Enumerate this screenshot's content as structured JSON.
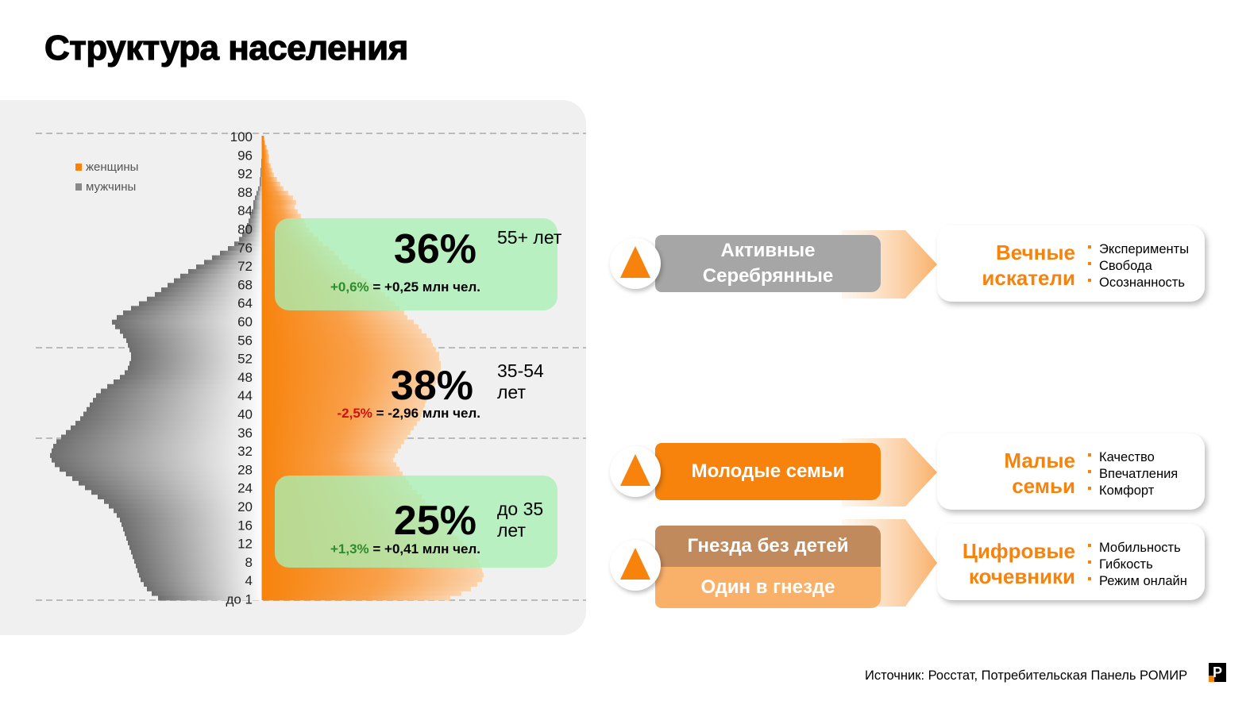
{
  "title": "Структура населения",
  "chart_data": {
    "type": "population-pyramid",
    "legend": [
      "женщины",
      "мужчины"
    ],
    "y_tick_labels": [
      "100",
      "96",
      "92",
      "88",
      "84",
      "80",
      "76",
      "72",
      "68",
      "64",
      "60",
      "56",
      "52",
      "48",
      "44",
      "40",
      "36",
      "32",
      "28",
      "24",
      "20",
      "16",
      "12",
      "8",
      "4",
      "до 1"
    ],
    "series": [
      {
        "name": "женщины",
        "values": [
          1,
          3,
          5,
          7,
          8,
          8,
          10,
          12,
          14,
          18,
          22,
          26,
          32,
          38,
          42,
          40,
          44,
          48,
          52,
          54,
          58,
          64,
          70,
          76,
          84,
          90,
          96,
          100,
          108,
          116,
          124,
          132,
          140,
          148,
          154,
          160,
          166,
          172,
          178,
          182,
          190,
          196,
          200,
          206,
          212,
          214,
          218,
          222,
          222,
          224,
          224,
          222,
          220,
          218,
          216,
          214,
          210,
          206,
          204,
          202,
          200,
          198,
          194,
          190,
          186,
          182,
          178,
          174,
          170,
          166,
          164,
          168,
          172,
          176,
          180,
          184,
          188,
          194,
          200,
          204,
          210,
          216,
          222,
          226,
          232,
          236,
          240,
          246,
          252,
          258,
          264,
          268,
          272,
          274,
          276,
          278,
          276,
          270,
          262,
          250,
          236
        ]
      },
      {
        "name": "мужчины",
        "values": [
          0,
          0,
          0,
          1,
          1,
          2,
          2,
          3,
          3,
          4,
          4,
          6,
          8,
          10,
          12,
          12,
          14,
          16,
          18,
          20,
          22,
          26,
          30,
          36,
          44,
          54,
          64,
          74,
          84,
          94,
          104,
          112,
          120,
          128,
          136,
          146,
          156,
          166,
          176,
          184,
          190,
          186,
          180,
          176,
          172,
          170,
          168,
          166,
          166,
          168,
          170,
          174,
          180,
          188,
          196,
          204,
          210,
          214,
          218,
          222,
          226,
          230,
          236,
          242,
          248,
          254,
          260,
          264,
          266,
          268,
          266,
          262,
          256,
          248,
          240,
          232,
          224,
          216,
          208,
          200,
          194,
          188,
          184,
          180,
          178,
          176,
          174,
          172,
          170,
          168,
          166,
          164,
          162,
          160,
          158,
          156,
          154,
          150,
          146,
          140,
          132
        ]
      }
    ],
    "bands": [
      {
        "percent": "36%",
        "change_pct": "+0,6%",
        "change_abs": "= +0,25 млн чел.",
        "label": "55+ лет"
      },
      {
        "percent": "38%",
        "change_pct": "-2,5%",
        "change_abs": "= -2,96 млн чел.",
        "label": "35-54 лет"
      },
      {
        "percent": "25%",
        "change_pct": "+1,3%",
        "change_abs": "= +0,41 млн чел.",
        "label": "до 35 лет"
      }
    ]
  },
  "segments": [
    {
      "name": "Активные Серебрянные",
      "card_title": "Вечные искатели",
      "bullets": [
        "Эксперименты",
        "Свобода",
        "Осознанность"
      ]
    },
    {
      "name": "Молодые семьи",
      "card_title": "Малые семьи",
      "bullets": [
        "Качество",
        "Впечатления",
        "Комфорт"
      ]
    },
    {
      "name": "Гнезда без детей",
      "name2": "Один в гнезде",
      "card_title": "Цифровые кочевники",
      "bullets": [
        "Мобильность",
        "Гибкость",
        "Режим онлайн"
      ]
    }
  ],
  "source": "Источник: Росстат, Потребительская Панель РОМИР",
  "logo_text": "Р",
  "colors": {
    "orange": "#f7830c",
    "gray_segment": "#a6a6a6",
    "brown_segment": "#c08a5c",
    "light_orange_segment": "#f9b069",
    "band_green": "#a8f0b4",
    "positive": "#2e8b2e",
    "negative": "#d01010"
  }
}
